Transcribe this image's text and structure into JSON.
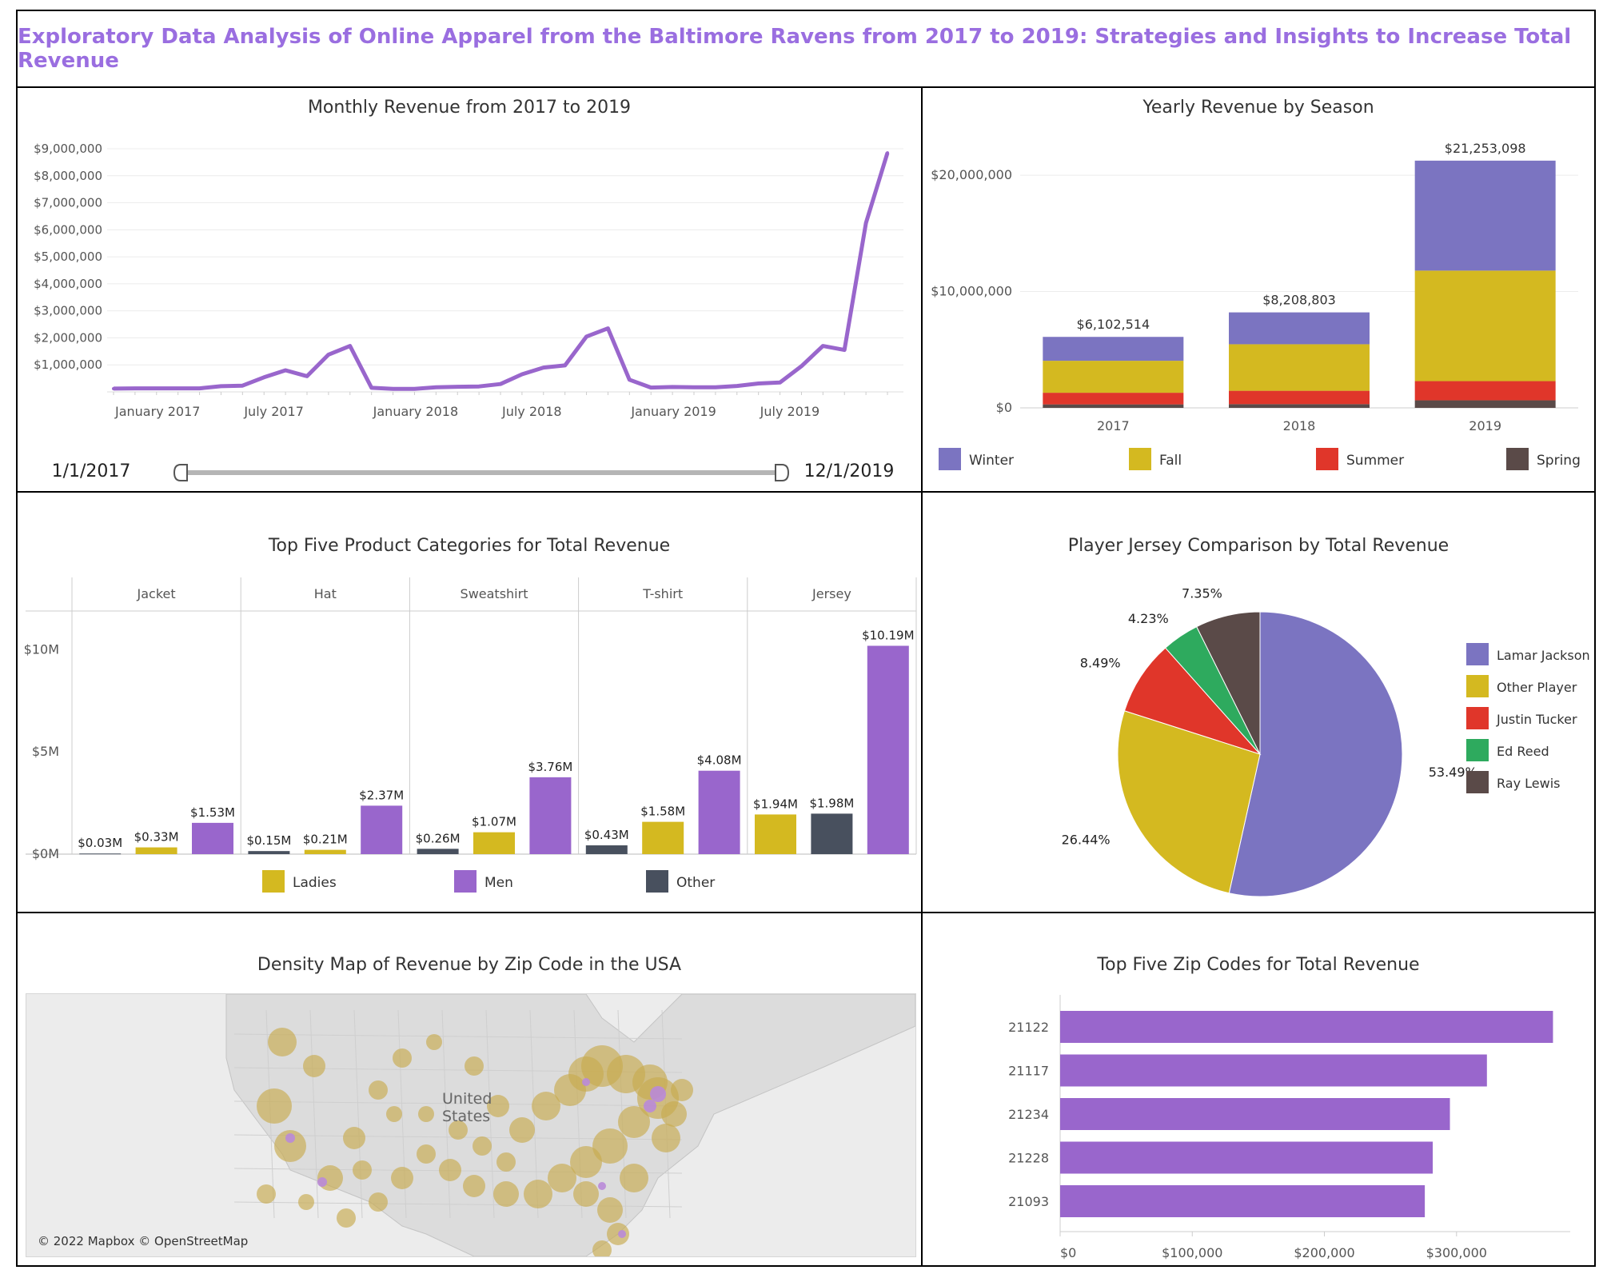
{
  "header": {
    "title": "Exploratory Data Analysis of Online Apparel from the Baltimore Ravens from 2017 to 2019: Strategies and Insights to Increase Total Revenue"
  },
  "colors": {
    "title": "#9a6ee0",
    "purple": "#9966cc",
    "winter": "#7b74c1",
    "fall": "#d4b920",
    "summer": "#e0362a",
    "spring": "#5a4a48",
    "ladies": "#d4b920",
    "men": "#9966cc",
    "other": "#48505e",
    "lamar": "#7b74c1",
    "other_player": "#d4b920",
    "tucker": "#e0362a",
    "reed": "#2eaa5e",
    "lewis": "#5a4a48"
  },
  "panels": {
    "monthly": {
      "title": "Monthly Revenue from 2017 to 2019",
      "slider": {
        "start_label": "1/1/2017",
        "end_label": "12/1/2019"
      }
    },
    "season": {
      "title": "Yearly Revenue by Season"
    },
    "categories": {
      "title": "Top Five Product Categories for Total Revenue"
    },
    "jersey": {
      "title": "Player Jersey Comparison by Total Revenue"
    },
    "map": {
      "title": "Density Map of Revenue by Zip Code in the USA",
      "country_label": "United States",
      "credit": "© 2022 Mapbox © OpenStreetMap"
    },
    "zip": {
      "title": "Top Five Zip Codes for Total Revenue"
    }
  },
  "chart_data": [
    {
      "id": "monthly",
      "type": "line",
      "title": "Monthly Revenue from 2017 to 2019",
      "x": [
        "2017-01",
        "2017-02",
        "2017-03",
        "2017-04",
        "2017-05",
        "2017-06",
        "2017-07",
        "2017-08",
        "2017-09",
        "2017-10",
        "2017-11",
        "2017-12",
        "2018-01",
        "2018-02",
        "2018-03",
        "2018-04",
        "2018-05",
        "2018-06",
        "2018-07",
        "2018-08",
        "2018-09",
        "2018-10",
        "2018-11",
        "2018-12",
        "2019-01",
        "2019-02",
        "2019-03",
        "2019-04",
        "2019-05",
        "2019-06",
        "2019-07",
        "2019-08",
        "2019-09",
        "2019-10",
        "2019-11",
        "2019-12"
      ],
      "values": [
        120000,
        130000,
        130000,
        130000,
        130000,
        210000,
        230000,
        540000,
        800000,
        580000,
        1380000,
        1700000,
        150000,
        110000,
        110000,
        170000,
        190000,
        200000,
        290000,
        650000,
        900000,
        980000,
        2050000,
        2350000,
        450000,
        160000,
        180000,
        170000,
        170000,
        220000,
        310000,
        350000,
        950000,
        1700000,
        1550000,
        6250000
      ],
      "extra_point": 8850000,
      "x_tick_labels": [
        "January 2017",
        "July 2017",
        "January 2018",
        "July 2018",
        "January 2019",
        "July 2019"
      ],
      "y_tick_labels": [
        "$1,000,000",
        "$2,000,000",
        "$3,000,000",
        "$4,000,000",
        "$5,000,000",
        "$6,000,000",
        "$7,000,000",
        "$8,000,000",
        "$9,000,000"
      ],
      "ylim": [
        0,
        9000000
      ]
    },
    {
      "id": "season",
      "type": "bar",
      "stacked": true,
      "title": "Yearly Revenue by Season",
      "categories": [
        "2017",
        "2018",
        "2019"
      ],
      "totals_labels": [
        "$6,102,514",
        "$8,208,803",
        "$21,253,098"
      ],
      "totals": [
        6102514,
        8208803,
        21253098
      ],
      "series": [
        {
          "name": "Spring",
          "values": [
            300000,
            320000,
            650000
          ]
        },
        {
          "name": "Summer",
          "values": [
            1000000,
            1150000,
            1650000
          ]
        },
        {
          "name": "Fall",
          "values": [
            2750000,
            4000000,
            9500000
          ]
        },
        {
          "name": "Winter",
          "values": [
            2052514,
            2738803,
            9453098
          ]
        }
      ],
      "legend_order": [
        "Winter",
        "Fall",
        "Summer",
        "Spring"
      ],
      "y_tick_labels": [
        "$0",
        "$10,000,000",
        "$20,000,000"
      ],
      "ylim": [
        0,
        22000000
      ]
    },
    {
      "id": "categories",
      "type": "bar",
      "title": "Top Five Product Categories for Total Revenue",
      "categories": [
        "Jacket",
        "Hat",
        "Sweatshirt",
        "T-shirt",
        "Jersey"
      ],
      "groups": [
        {
          "category": "Jacket",
          "bars": [
            {
              "series": "Other",
              "value": 0.03,
              "label": "$0.03M"
            },
            {
              "series": "Ladies",
              "value": 0.33,
              "label": "$0.33M"
            },
            {
              "series": "Men",
              "value": 1.53,
              "label": "$1.53M"
            }
          ]
        },
        {
          "category": "Hat",
          "bars": [
            {
              "series": "Other",
              "value": 0.15,
              "label": "$0.15M"
            },
            {
              "series": "Ladies",
              "value": 0.21,
              "label": "$0.21M"
            },
            {
              "series": "Men",
              "value": 2.37,
              "label": "$2.37M"
            }
          ]
        },
        {
          "category": "Sweatshirt",
          "bars": [
            {
              "series": "Other",
              "value": 0.26,
              "label": "$0.26M"
            },
            {
              "series": "Ladies",
              "value": 1.07,
              "label": "$1.07M"
            },
            {
              "series": "Men",
              "value": 3.76,
              "label": "$3.76M"
            }
          ]
        },
        {
          "category": "T-shirt",
          "bars": [
            {
              "series": "Other",
              "value": 0.43,
              "label": "$0.43M"
            },
            {
              "series": "Ladies",
              "value": 1.58,
              "label": "$1.58M"
            },
            {
              "series": "Men",
              "value": 4.08,
              "label": "$4.08M"
            }
          ]
        },
        {
          "category": "Jersey",
          "bars": [
            {
              "series": "Ladies",
              "value": 1.94,
              "label": "$1.94M"
            },
            {
              "series": "Other",
              "value": 1.98,
              "label": "$1.98M"
            },
            {
              "series": "Men",
              "value": 10.19,
              "label": "$10.19M"
            }
          ]
        }
      ],
      "legend": [
        "Ladies",
        "Men",
        "Other"
      ],
      "y_tick_labels": [
        "$0M",
        "$5M",
        "$10M"
      ],
      "ylim": [
        0,
        11.5
      ]
    },
    {
      "id": "jersey",
      "type": "pie",
      "title": "Player Jersey Comparison by Total Revenue",
      "slices": [
        {
          "name": "Lamar Jackson",
          "value": 53.49,
          "label": "53.49%"
        },
        {
          "name": "Other Player",
          "value": 26.44,
          "label": "26.44%"
        },
        {
          "name": "Justin Tucker",
          "value": 8.49,
          "label": "8.49%"
        },
        {
          "name": "Ed Reed",
          "value": 4.23,
          "label": "4.23%"
        },
        {
          "name": "Ray Lewis",
          "value": 7.35,
          "label": "7.35%"
        }
      ]
    },
    {
      "id": "zip",
      "type": "bar",
      "orientation": "horizontal",
      "title": "Top Five Zip Codes for Total Revenue",
      "categories": [
        "21122",
        "21117",
        "21234",
        "21228",
        "21093"
      ],
      "values": [
        373000,
        323000,
        295000,
        282000,
        276000
      ],
      "x_tick_labels": [
        "$0",
        "$100,000",
        "$200,000",
        "$300,000"
      ],
      "xlim": [
        0,
        380000
      ]
    }
  ]
}
